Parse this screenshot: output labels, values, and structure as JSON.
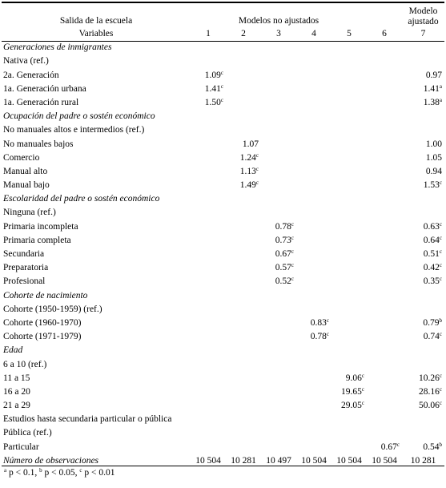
{
  "header": {
    "left_title": "Salida de la escuela",
    "unadjusted": "Modelos no ajustados",
    "adjusted": "Modelo ajustado",
    "variables": "Variables",
    "cols": [
      "1",
      "2",
      "3",
      "4",
      "5",
      "6",
      "7"
    ]
  },
  "rows": [
    {
      "label": "Generaciones de inmigrantes",
      "type": "section"
    },
    {
      "label": "Nativa (ref.)",
      "type": "plain"
    },
    {
      "label": "2a. Generación",
      "cells": [
        {
          "v": "1.09",
          "s": "c"
        },
        null,
        null,
        null,
        null,
        null,
        {
          "v": "0.97",
          "s": ""
        }
      ]
    },
    {
      "label": "1a. Generación urbana",
      "cells": [
        {
          "v": "1.41",
          "s": "c"
        },
        null,
        null,
        null,
        null,
        null,
        {
          "v": "1.41",
          "s": "a"
        }
      ]
    },
    {
      "label": "1a. Generación rural",
      "cells": [
        {
          "v": "1.50",
          "s": "c"
        },
        null,
        null,
        null,
        null,
        null,
        {
          "v": "1.38",
          "s": "a"
        }
      ]
    },
    {
      "label": "Ocupación del padre o sostén económico",
      "type": "section"
    },
    {
      "label": "No manuales altos e intermedios (ref.)",
      "type": "plain"
    },
    {
      "label": "No manuales bajos",
      "cells": [
        null,
        {
          "v": "1.07",
          "s": ""
        },
        null,
        null,
        null,
        null,
        {
          "v": "1.00",
          "s": ""
        }
      ]
    },
    {
      "label": "Comercio",
      "cells": [
        null,
        {
          "v": "1.24",
          "s": "c"
        },
        null,
        null,
        null,
        null,
        {
          "v": "1.05",
          "s": ""
        }
      ]
    },
    {
      "label": "Manual alto",
      "cells": [
        null,
        {
          "v": "1.13",
          "s": "c"
        },
        null,
        null,
        null,
        null,
        {
          "v": "0.94",
          "s": ""
        }
      ]
    },
    {
      "label": "Manual bajo",
      "cells": [
        null,
        {
          "v": "1.49",
          "s": "c"
        },
        null,
        null,
        null,
        null,
        {
          "v": "1.53",
          "s": "c"
        }
      ]
    },
    {
      "label": "Escolaridad del padre o sostén económico",
      "type": "section"
    },
    {
      "label": "Ninguna (ref.)",
      "type": "plain"
    },
    {
      "label": "Primaria incompleta",
      "cells": [
        null,
        null,
        {
          "v": "0.78",
          "s": "c"
        },
        null,
        null,
        null,
        {
          "v": "0.63",
          "s": "c"
        }
      ]
    },
    {
      "label": "Primaria completa",
      "cells": [
        null,
        null,
        {
          "v": "0.73",
          "s": "c"
        },
        null,
        null,
        null,
        {
          "v": "0.64",
          "s": "c"
        }
      ]
    },
    {
      "label": "Secundaria",
      "cells": [
        null,
        null,
        {
          "v": "0.67",
          "s": "c"
        },
        null,
        null,
        null,
        {
          "v": "0.51",
          "s": "c"
        }
      ]
    },
    {
      "label": "Preparatoria",
      "cells": [
        null,
        null,
        {
          "v": "0.57",
          "s": "c"
        },
        null,
        null,
        null,
        {
          "v": "0.42",
          "s": "c"
        }
      ]
    },
    {
      "label": "Profesional",
      "cells": [
        null,
        null,
        {
          "v": "0.52",
          "s": "c"
        },
        null,
        null,
        null,
        {
          "v": "0.35",
          "s": "c"
        }
      ]
    },
    {
      "label": "Cohorte de nacimiento",
      "type": "section"
    },
    {
      "label": "Cohorte (1950-1959) (ref.)",
      "type": "plain"
    },
    {
      "label": "Cohorte (1960-1970)",
      "cells": [
        null,
        null,
        null,
        {
          "v": "0.83",
          "s": "c"
        },
        null,
        null,
        {
          "v": "0.79",
          "s": "b"
        }
      ]
    },
    {
      "label": "Cohorte (1971-1979)",
      "cells": [
        null,
        null,
        null,
        {
          "v": "0.78",
          "s": "c"
        },
        null,
        null,
        {
          "v": "0.74",
          "s": "c"
        }
      ]
    },
    {
      "label": "Edad",
      "type": "section"
    },
    {
      "label": "6 a 10 (ref.)",
      "type": "plain"
    },
    {
      "label": "11 a 15",
      "cells": [
        null,
        null,
        null,
        null,
        {
          "v": "9.06",
          "s": "c"
        },
        null,
        {
          "v": "10.26",
          "s": "c"
        }
      ]
    },
    {
      "label": "16 a 20",
      "cells": [
        null,
        null,
        null,
        null,
        {
          "v": "19.65",
          "s": "c"
        },
        null,
        {
          "v": "28.16",
          "s": "c"
        }
      ]
    },
    {
      "label": "21 a 29",
      "cells": [
        null,
        null,
        null,
        null,
        {
          "v": "29.05",
          "s": "c"
        },
        null,
        {
          "v": "50.06",
          "s": "c"
        }
      ]
    },
    {
      "label": "Estudios hasta secundaria particular o pública",
      "type": "plain"
    },
    {
      "label": "Pública (ref.)",
      "type": "plain"
    },
    {
      "label": "Particular",
      "cells": [
        null,
        null,
        null,
        null,
        null,
        {
          "v": "0.67",
          "s": "c"
        },
        {
          "v": "0.54",
          "s": "b"
        }
      ]
    },
    {
      "label": "Número de observaciones",
      "type": "obs",
      "cells": [
        {
          "v": "10 504",
          "s": ""
        },
        {
          "v": "10 281",
          "s": ""
        },
        {
          "v": "10 497",
          "s": ""
        },
        {
          "v": "10 504",
          "s": ""
        },
        {
          "v": "10 504",
          "s": ""
        },
        {
          "v": "10 504",
          "s": ""
        },
        {
          "v": "10 281",
          "s": ""
        }
      ]
    }
  ],
  "footnote": {
    "a": "a",
    "a_text": " p < 0.1, ",
    "b": "b",
    "b_text": " p < 0.05, ",
    "c": "c",
    "c_text": " p < 0.01"
  }
}
